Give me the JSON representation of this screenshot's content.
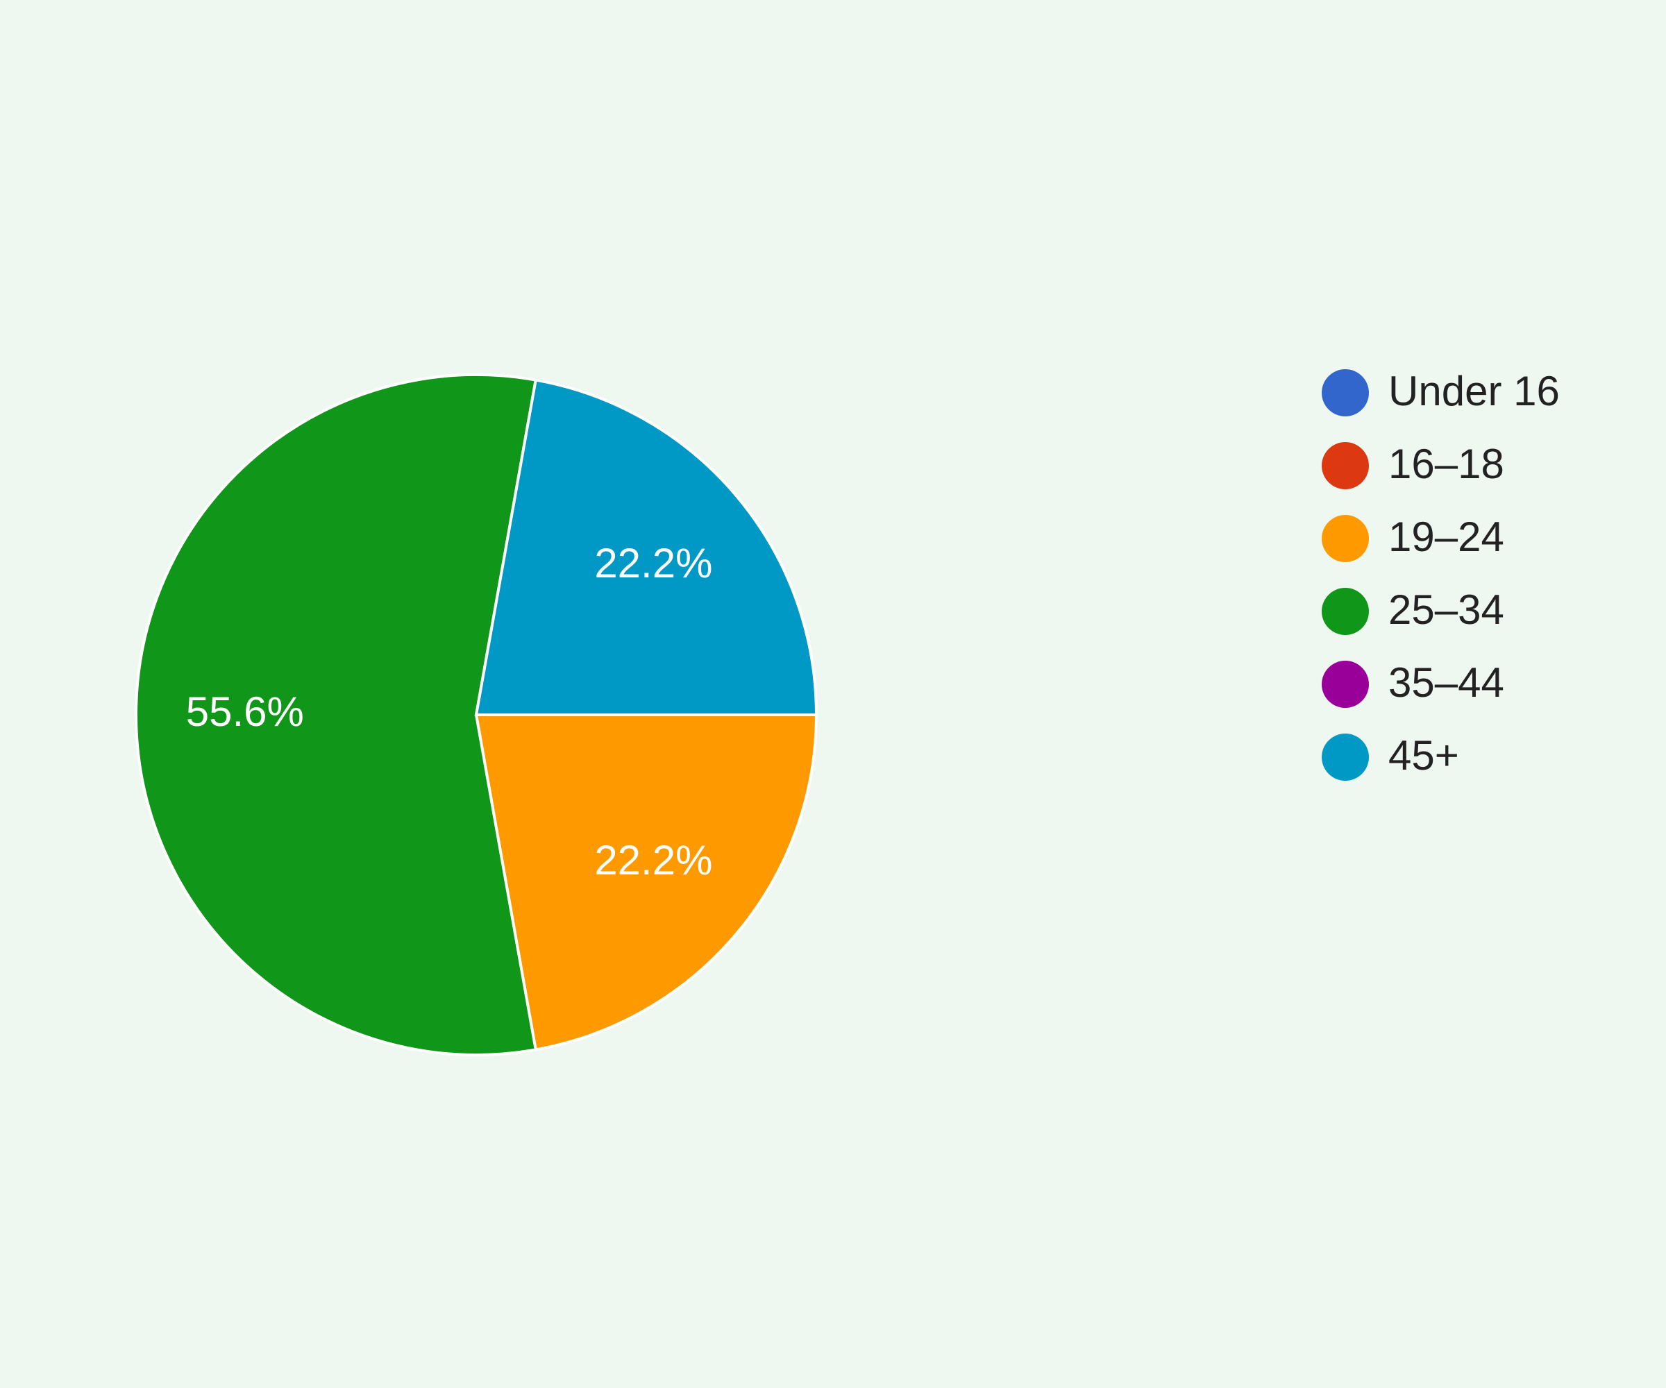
{
  "chart_data": {
    "type": "pie",
    "categories": [
      "Under 16",
      "16–18",
      "19–24",
      "25–34",
      "35–44",
      "45+"
    ],
    "values": [
      0,
      0,
      22.2,
      55.6,
      0,
      22.2
    ],
    "value_labels": [
      null,
      null,
      "22.2%",
      "55.6%",
      null,
      "22.2%"
    ],
    "colors": [
      "#3366cc",
      "#dc3912",
      "#ff9900",
      "#109618",
      "#990099",
      "#0099c6"
    ],
    "legend": "right"
  }
}
